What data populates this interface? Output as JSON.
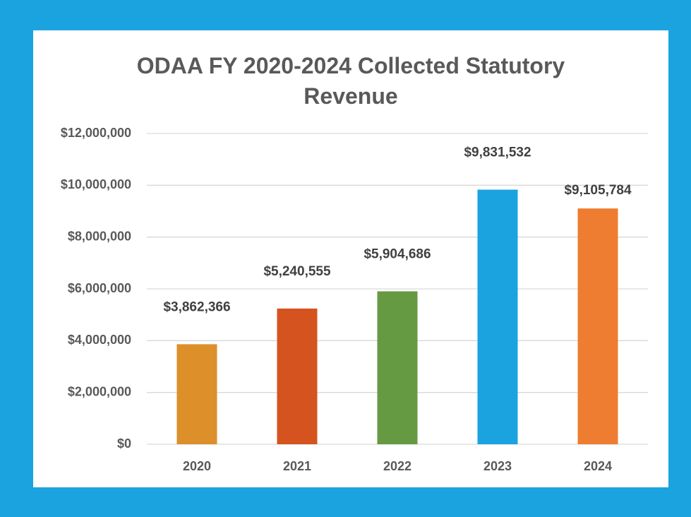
{
  "chart_data": {
    "type": "bar",
    "title": "ODAA FY 2020-2024 Collected Statutory Revenue",
    "categories": [
      "2020",
      "2021",
      "2022",
      "2023",
      "2024"
    ],
    "values": [
      3862366,
      5240555,
      5904686,
      9831532,
      9105784
    ],
    "value_labels": [
      "$3,862,366",
      "$5,240,555",
      "$5,904,686",
      "$9,831,532",
      "$9,105,784"
    ],
    "colors": [
      "#dd8f2a",
      "#d4531f",
      "#669a42",
      "#1ba3e0",
      "#ee7d31"
    ],
    "ylim": [
      0,
      12000000
    ],
    "yticks": [
      {
        "value": 0,
        "label": "$0"
      },
      {
        "value": 2000000,
        "label": "$2,000,000"
      },
      {
        "value": 4000000,
        "label": "$4,000,000"
      },
      {
        "value": 6000000,
        "label": "$6,000,000"
      },
      {
        "value": 8000000,
        "label": "$8,000,000"
      },
      {
        "value": 10000000,
        "label": "$10,000,000"
      },
      {
        "value": 12000000,
        "label": "$12,000,000"
      }
    ],
    "grid": true
  }
}
